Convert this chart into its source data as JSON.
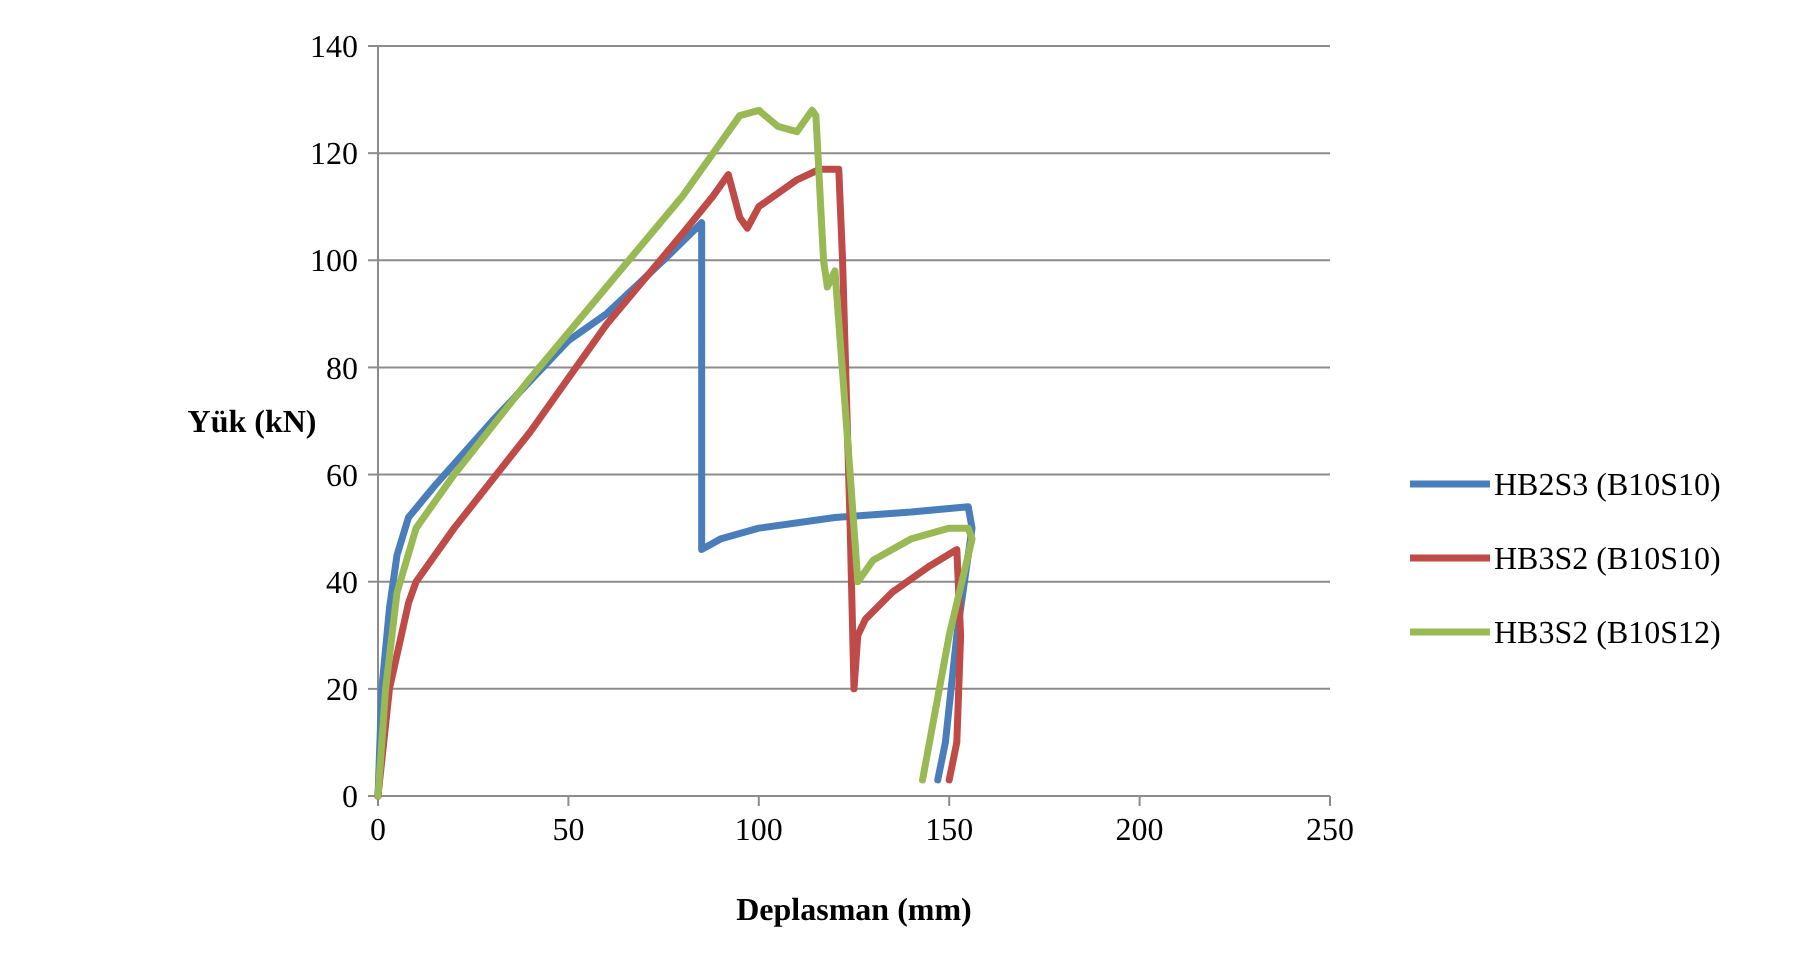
{
  "chart_data": {
    "type": "line",
    "xlabel": "Deplasman (mm)",
    "ylabel": "Yük (kN)",
    "xlim": [
      0,
      250
    ],
    "xticks": [
      0,
      50,
      100,
      150,
      200,
      250
    ],
    "ylim": [
      0,
      140
    ],
    "yticks": [
      0,
      20,
      40,
      60,
      80,
      100,
      120,
      140
    ],
    "grid": "y",
    "legend": "right",
    "series": [
      {
        "name": "HB2S3 (B10S10)",
        "color": "#4a7ebb",
        "x": [
          0,
          1,
          3,
          5,
          8,
          15,
          30,
          50,
          60,
          75,
          85,
          85,
          90,
          100,
          120,
          140,
          155,
          156,
          152,
          149,
          147
        ],
        "values": [
          0,
          20,
          35,
          45,
          52,
          58,
          70,
          85,
          90,
          100,
          107,
          46,
          48,
          50,
          52,
          53,
          54,
          50,
          30,
          10,
          3
        ]
      },
      {
        "name": "HB3S2 (B10S10)",
        "color": "#be4b48",
        "x": [
          0,
          3,
          8,
          10,
          20,
          40,
          60,
          80,
          88,
          92,
          95,
          97,
          100,
          110,
          116,
          121,
          122,
          124,
          125,
          126,
          128,
          135,
          145,
          152,
          153,
          152,
          150
        ],
        "values": [
          0,
          20,
          36,
          40,
          50,
          68,
          88,
          105,
          112,
          116,
          108,
          106,
          110,
          115,
          117,
          117,
          100,
          50,
          20,
          30,
          33,
          38,
          43,
          46,
          30,
          10,
          3
        ]
      },
      {
        "name": "HB3S2 (B10S12)",
        "color": "#98b954",
        "x": [
          0,
          2,
          5,
          10,
          20,
          40,
          60,
          80,
          90,
          95,
          100,
          105,
          110,
          114,
          115,
          117,
          118,
          120,
          124,
          126,
          130,
          140,
          150,
          155,
          156,
          150,
          143
        ],
        "values": [
          0,
          20,
          38,
          50,
          60,
          78,
          95,
          112,
          122,
          127,
          128,
          125,
          124,
          128,
          127,
          100,
          95,
          98,
          60,
          40,
          44,
          48,
          50,
          50,
          48,
          30,
          3
        ]
      }
    ]
  }
}
